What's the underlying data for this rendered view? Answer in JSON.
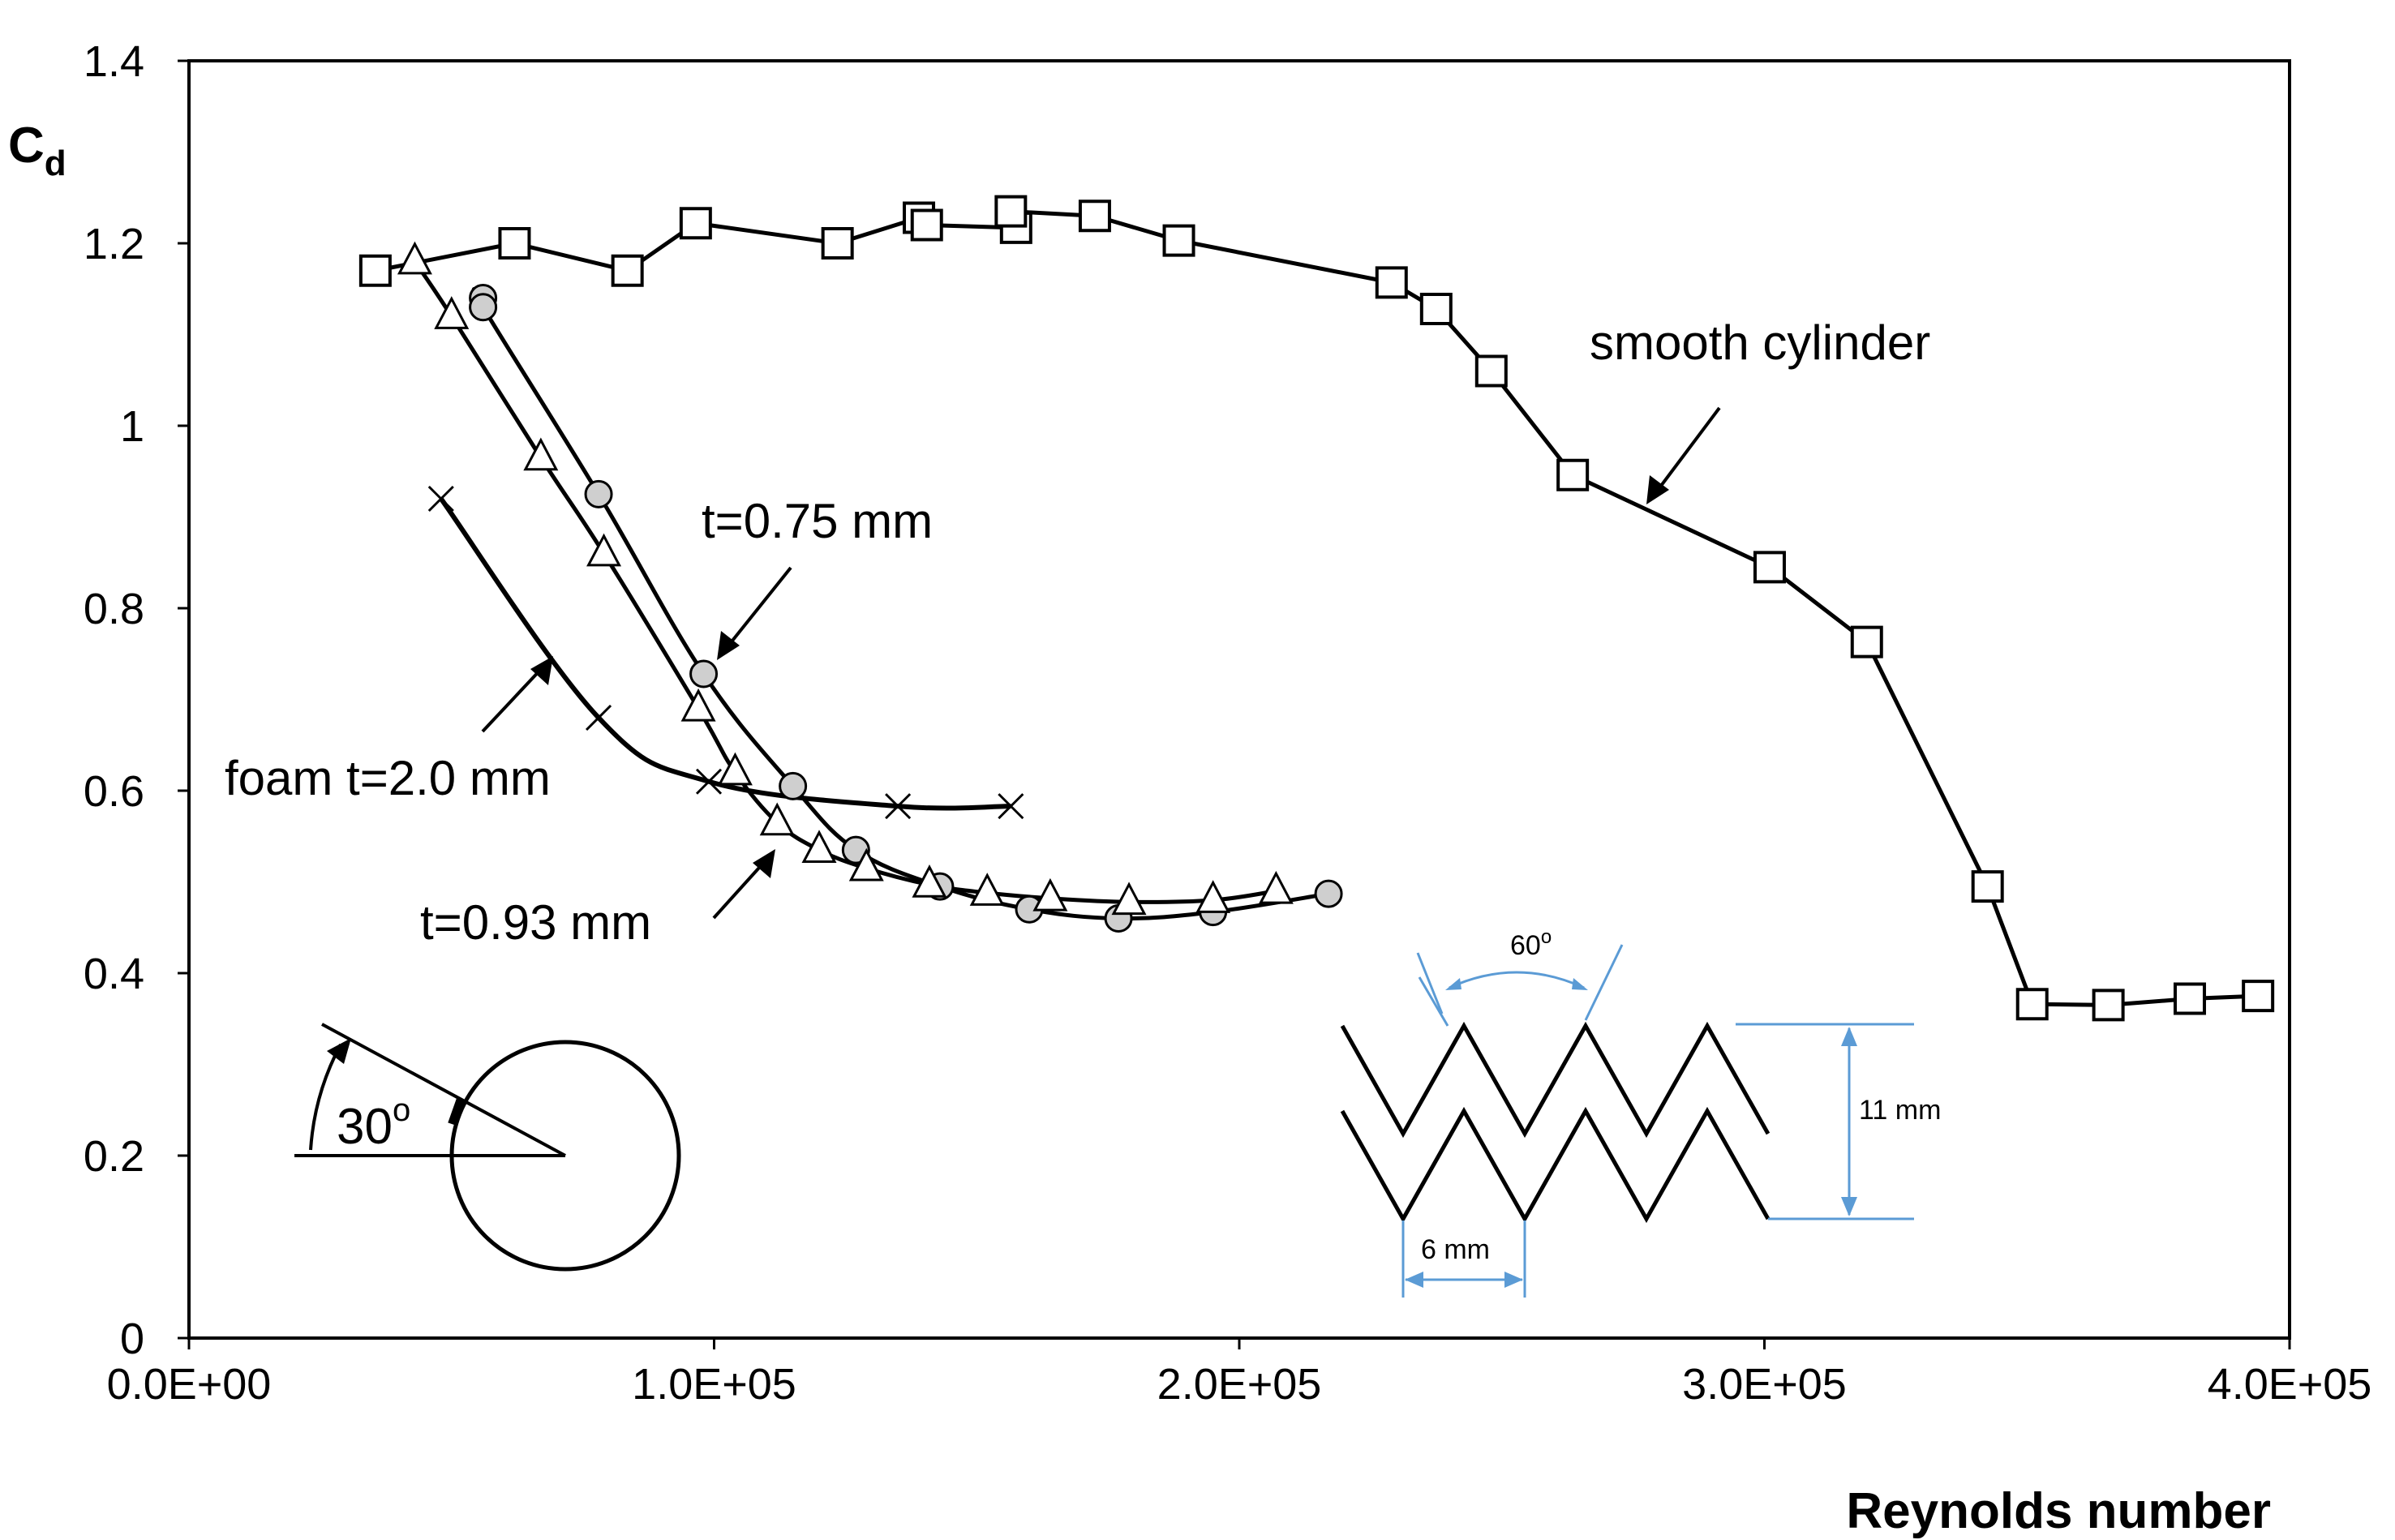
{
  "chart_data": {
    "type": "line",
    "xlabel": "Reynolds number",
    "ylabel": "Cd",
    "ylabel_main": "C",
    "ylabel_sub": "d",
    "xlim": [
      0,
      400000
    ],
    "ylim": [
      0,
      1.4
    ],
    "xticks": [
      0,
      100000,
      200000,
      300000,
      400000
    ],
    "xtick_labels": [
      "0.0E+00",
      "1.0E+05",
      "2.0E+05",
      "3.0E+05",
      "4.0E+05"
    ],
    "yticks": [
      0,
      0.2,
      0.4,
      0.6,
      0.8,
      1.0,
      1.2,
      1.4
    ],
    "ytick_labels": [
      "0",
      "0.2",
      "0.4",
      "0.6",
      "0.8",
      "1",
      "1.2",
      "1.4"
    ],
    "grid": false,
    "series": [
      {
        "name": "smooth cylinder",
        "marker": "square",
        "x": [
          35500,
          62000,
          83500,
          96500,
          123500,
          139000,
          140500,
          157500,
          156500,
          172500,
          188500,
          229000,
          237500,
          248000,
          263500,
          301000,
          319500,
          342500,
          351000,
          365500,
          381000,
          394000
        ],
        "y": [
          1.17,
          1.2,
          1.17,
          1.222,
          1.2,
          1.228,
          1.22,
          1.217,
          1.235,
          1.23,
          1.203,
          1.157,
          1.128,
          1.06,
          0.946,
          0.845,
          0.763,
          0.495,
          0.366,
          0.365,
          0.372,
          0.375
        ]
      },
      {
        "name": "t=0.75 mm",
        "marker": "circle",
        "x": [
          56000,
          56000,
          78000,
          98000,
          115000,
          127000,
          143000,
          160000,
          177000,
          195000,
          217000
        ],
        "y": [
          1.14,
          1.13,
          0.925,
          0.728,
          0.605,
          0.535,
          0.495,
          0.47,
          0.46,
          0.467,
          0.487
        ]
      },
      {
        "name": "t=0.93 mm",
        "marker": "triangle",
        "x": [
          43000,
          50000,
          67000,
          79000,
          97000,
          104000,
          112000,
          120000,
          129000,
          141000,
          152000,
          164000,
          179000,
          195000,
          207000
        ],
        "y": [
          1.18,
          1.12,
          0.965,
          0.86,
          0.69,
          0.62,
          0.565,
          0.535,
          0.515,
          0.497,
          0.488,
          0.482,
          0.478,
          0.48,
          0.49
        ]
      },
      {
        "name": "foam t=2.0 mm",
        "marker": "x",
        "x": [
          48000,
          78000,
          99000,
          135000,
          156500
        ],
        "y": [
          0.92,
          0.68,
          0.61,
          0.583,
          0.583
        ]
      }
    ],
    "annotations": [
      {
        "text": "smooth cylinder",
        "series": "smooth cylinder"
      },
      {
        "text": "t=0.75 mm",
        "series": "t=0.75 mm"
      },
      {
        "text": "t=0.93 mm",
        "series": "t=0.93 mm"
      },
      {
        "text": "foam t=2.0 mm",
        "series": "foam t=2.0 mm"
      }
    ],
    "inset_cylinder": {
      "angle_label": "30",
      "angle_unit": "o"
    },
    "inset_foam": {
      "angle_label": "60",
      "angle_unit": "o",
      "height_label": "11 mm",
      "pitch_label": "6 mm"
    }
  }
}
